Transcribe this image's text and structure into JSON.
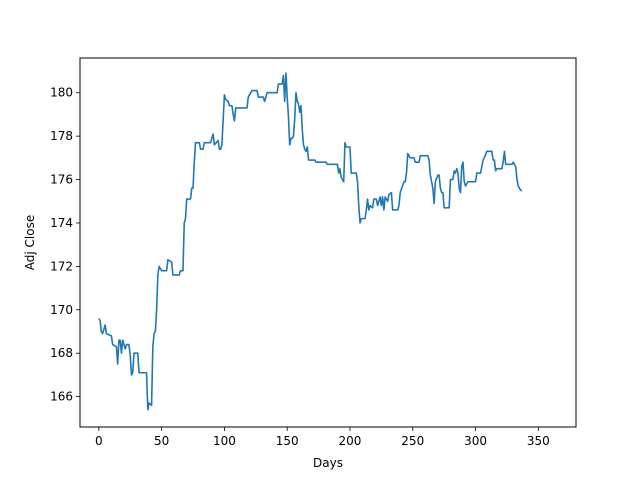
{
  "chart_data": {
    "type": "line",
    "title": "",
    "xlabel": "Days",
    "ylabel": "Adj Close",
    "xlim": [
      -15,
      380
    ],
    "ylim": [
      164.6,
      181.6
    ],
    "xticks": [
      0,
      50,
      100,
      150,
      200,
      250,
      300,
      350
    ],
    "yticks": [
      166,
      168,
      170,
      172,
      174,
      176,
      178,
      180
    ],
    "grid": false,
    "legend": "none",
    "line_color": "#1f77b4",
    "series": [
      {
        "points": [
          [
            0,
            169.6
          ],
          [
            1,
            169.5
          ],
          [
            2,
            169.0
          ],
          [
            3,
            168.9
          ],
          [
            5,
            169.3
          ],
          [
            6,
            168.9
          ],
          [
            10,
            168.8
          ],
          [
            11,
            168.4
          ],
          [
            14,
            168.3
          ],
          [
            15,
            167.5
          ],
          [
            16,
            168.6
          ],
          [
            17,
            168.6
          ],
          [
            18,
            168.0
          ],
          [
            19,
            168.6
          ],
          [
            21,
            168.2
          ],
          [
            22,
            168.4
          ],
          [
            24,
            168.4
          ],
          [
            25,
            167.9
          ],
          [
            26,
            167.0
          ],
          [
            27,
            167.1
          ],
          [
            28,
            168.0
          ],
          [
            31,
            168.0
          ],
          [
            32,
            167.1
          ],
          [
            38,
            167.1
          ],
          [
            39,
            165.4
          ],
          [
            40,
            165.7
          ],
          [
            42,
            165.6
          ],
          [
            43,
            168.3
          ],
          [
            44,
            168.9
          ],
          [
            45,
            169.0
          ],
          [
            46,
            170.0
          ],
          [
            47,
            171.6
          ],
          [
            48,
            172.0
          ],
          [
            50,
            171.8
          ],
          [
            52,
            171.8
          ],
          [
            54,
            171.8
          ],
          [
            55,
            172.3
          ],
          [
            58,
            172.2
          ],
          [
            59,
            171.6
          ],
          [
            64,
            171.6
          ],
          [
            65,
            171.8
          ],
          [
            67,
            171.8
          ],
          [
            68,
            174.0
          ],
          [
            69,
            174.2
          ],
          [
            70,
            175.1
          ],
          [
            73,
            175.1
          ],
          [
            74,
            175.6
          ],
          [
            75,
            175.6
          ],
          [
            76,
            176.8
          ],
          [
            77,
            177.7
          ],
          [
            80,
            177.7
          ],
          [
            81,
            177.4
          ],
          [
            83,
            177.4
          ],
          [
            84,
            177.7
          ],
          [
            89,
            177.7
          ],
          [
            90,
            177.9
          ],
          [
            91,
            178.1
          ],
          [
            92,
            177.6
          ],
          [
            95,
            177.8
          ],
          [
            96,
            177.4
          ],
          [
            97,
            177.4
          ],
          [
            98,
            177.6
          ],
          [
            100,
            179.9
          ],
          [
            101,
            179.7
          ],
          [
            103,
            179.6
          ],
          [
            104,
            179.4
          ],
          [
            106,
            179.4
          ],
          [
            107,
            179.0
          ],
          [
            108,
            178.7
          ],
          [
            109,
            179.3
          ],
          [
            118,
            179.3
          ],
          [
            119,
            179.8
          ],
          [
            122,
            180.1
          ],
          [
            124,
            180.1
          ],
          [
            126,
            180.1
          ],
          [
            127,
            179.8
          ],
          [
            131,
            179.8
          ],
          [
            132,
            179.6
          ],
          [
            134,
            180.0
          ],
          [
            136,
            180.0
          ],
          [
            142,
            180.0
          ],
          [
            143,
            180.4
          ],
          [
            146,
            180.4
          ],
          [
            147,
            180.8
          ],
          [
            148,
            179.6
          ],
          [
            149,
            180.9
          ],
          [
            150,
            179.8
          ],
          [
            151,
            178.9
          ],
          [
            152,
            177.6
          ],
          [
            153,
            177.9
          ],
          [
            154,
            177.9
          ],
          [
            155,
            178.0
          ],
          [
            156,
            178.8
          ],
          [
            157,
            180.0
          ],
          [
            158,
            179.6
          ],
          [
            159,
            179.5
          ],
          [
            160,
            179.1
          ],
          [
            161,
            179.4
          ],
          [
            162,
            178.3
          ],
          [
            163,
            177.6
          ],
          [
            164,
            177.4
          ],
          [
            165,
            177.3
          ],
          [
            166,
            177.5
          ],
          [
            167,
            176.9
          ],
          [
            172,
            176.9
          ],
          [
            173,
            176.8
          ],
          [
            181,
            176.8
          ],
          [
            182,
            176.7
          ],
          [
            190,
            176.7
          ],
          [
            191,
            176.3
          ],
          [
            192,
            176.5
          ],
          [
            193,
            176.1
          ],
          [
            195,
            175.9
          ],
          [
            196,
            177.7
          ],
          [
            197,
            177.5
          ],
          [
            200,
            177.5
          ],
          [
            201,
            176.3
          ],
          [
            205,
            176.3
          ],
          [
            206,
            175.9
          ],
          [
            207,
            174.8
          ],
          [
            208,
            174.0
          ],
          [
            209,
            174.2
          ],
          [
            212,
            174.2
          ],
          [
            213,
            174.6
          ],
          [
            214,
            175.1
          ],
          [
            215,
            174.6
          ],
          [
            216,
            174.8
          ],
          [
            218,
            174.7
          ],
          [
            219,
            175.1
          ],
          [
            221,
            175.1
          ],
          [
            222,
            174.8
          ],
          [
            223,
            175.0
          ],
          [
            224,
            175.2
          ],
          [
            225,
            174.8
          ],
          [
            226,
            175.2
          ],
          [
            227,
            174.6
          ],
          [
            228,
            175.2
          ],
          [
            230,
            175.0
          ],
          [
            231,
            175.3
          ],
          [
            233,
            175.4
          ],
          [
            234,
            174.6
          ],
          [
            238,
            174.6
          ],
          [
            239,
            174.8
          ],
          [
            240,
            175.4
          ],
          [
            243,
            175.9
          ],
          [
            244,
            175.9
          ],
          [
            245,
            176.3
          ],
          [
            246,
            177.2
          ],
          [
            247,
            177.1
          ],
          [
            248,
            177.0
          ],
          [
            251,
            177.0
          ],
          [
            252,
            176.8
          ],
          [
            255,
            176.8
          ],
          [
            256,
            177.1
          ],
          [
            262,
            177.1
          ],
          [
            263,
            176.9
          ],
          [
            264,
            176.2
          ],
          [
            266,
            175.6
          ],
          [
            267,
            174.9
          ],
          [
            268,
            175.9
          ],
          [
            270,
            176.2
          ],
          [
            271,
            176.2
          ],
          [
            272,
            175.6
          ],
          [
            273,
            175.4
          ],
          [
            274,
            175.4
          ],
          [
            275,
            174.7
          ],
          [
            279,
            174.7
          ],
          [
            280,
            176.0
          ],
          [
            282,
            176.0
          ],
          [
            283,
            176.4
          ],
          [
            284,
            176.3
          ],
          [
            285,
            176.5
          ],
          [
            286,
            176.3
          ],
          [
            287,
            175.6
          ],
          [
            288,
            175.4
          ],
          [
            289,
            176.6
          ],
          [
            290,
            176.8
          ],
          [
            291,
            175.9
          ],
          [
            292,
            175.7
          ],
          [
            294,
            175.9
          ],
          [
            296,
            175.9
          ],
          [
            300,
            175.9
          ],
          [
            301,
            176.3
          ],
          [
            303,
            176.3
          ],
          [
            304,
            176.3
          ],
          [
            305,
            176.6
          ],
          [
            306,
            176.9
          ],
          [
            307,
            177.0
          ],
          [
            309,
            177.3
          ],
          [
            313,
            177.3
          ],
          [
            314,
            176.9
          ],
          [
            315,
            176.9
          ],
          [
            316,
            176.4
          ],
          [
            317,
            176.5
          ],
          [
            319,
            176.5
          ],
          [
            321,
            176.5
          ],
          [
            322,
            176.8
          ],
          [
            323,
            177.3
          ],
          [
            324,
            176.7
          ],
          [
            329,
            176.7
          ],
          [
            330,
            176.8
          ],
          [
            331,
            176.7
          ],
          [
            332,
            176.6
          ],
          [
            333,
            176.0
          ],
          [
            334,
            175.7
          ],
          [
            335,
            175.6
          ],
          [
            336,
            175.5
          ],
          [
            337,
            175.5
          ]
        ]
      }
    ]
  }
}
